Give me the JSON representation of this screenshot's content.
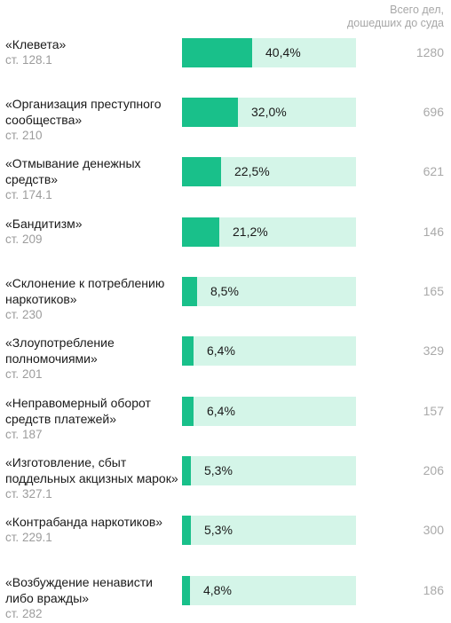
{
  "header": {
    "line1": "Всего дел,",
    "line2": "дошедших до суда"
  },
  "chart_data": {
    "type": "bar",
    "orientation": "horizontal",
    "rows": [
      {
        "name": "«Клевета»",
        "article": "ст. 128.1",
        "value": 40.4,
        "value_label": "40,4%",
        "total": "1280"
      },
      {
        "name": "«Организация преступного\nсообщества»",
        "article": "ст. 210",
        "value": 32.0,
        "value_label": "32,0%",
        "total": "696"
      },
      {
        "name": "«Отмывание денежных\nсредств»",
        "article": "ст. 174.1",
        "value": 22.5,
        "value_label": "22,5%",
        "total": "621"
      },
      {
        "name": "«Бандитизм»",
        "article": "ст. 209",
        "value": 21.2,
        "value_label": "21,2%",
        "total": "146"
      },
      {
        "name": "«Склонение к потреблению\nнаркотиков»",
        "article": "ст. 230",
        "value": 8.5,
        "value_label": "8,5%",
        "total": "165"
      },
      {
        "name": "«Злоупотребление\nполномочиями»",
        "article": "ст. 201",
        "value": 6.4,
        "value_label": "6,4%",
        "total": "329"
      },
      {
        "name": "«Неправомерный оборот\nсредств платежей»",
        "article": "ст. 187",
        "value": 6.4,
        "value_label": "6,4%",
        "total": "157"
      },
      {
        "name": "«Изготовление, сбыт\nподдельных акцизных марок»",
        "article": "ст. 327.1",
        "value": 5.3,
        "value_label": "5,3%",
        "total": "206"
      },
      {
        "name": "«Контрабанда наркотиков»",
        "article": "ст. 229.1",
        "value": 5.3,
        "value_label": "5,3%",
        "total": "300"
      },
      {
        "name": "«Возбуждение ненависти\nлибо вражды»",
        "article": "ст. 282",
        "value": 4.8,
        "value_label": "4,8%",
        "total": "186"
      }
    ],
    "xlim": [
      0,
      100
    ],
    "colors": {
      "fill": "#19c08a",
      "track": "#d4f5e8"
    }
  }
}
